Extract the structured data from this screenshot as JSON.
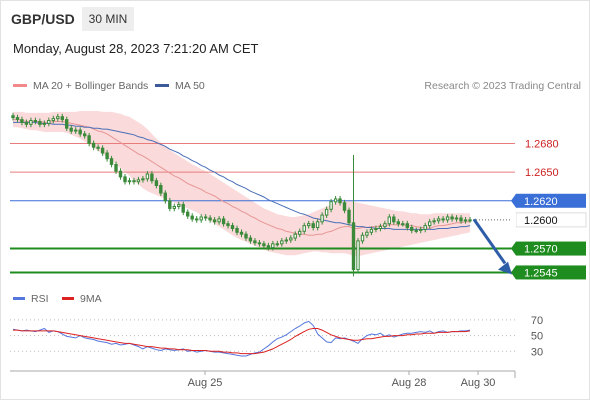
{
  "header": {
    "pair": "GBP/USD",
    "timeframe": "30 MIN",
    "datetime": "Monday, August 28, 2023 7:21:20 AM CET"
  },
  "legend": {
    "ma20_bb": "MA 20 + Bollinger Bands",
    "ma50": "MA 50",
    "copyright": "Research © 2023 Trading Central"
  },
  "rsi_legend": {
    "rsi": "RSI",
    "ma9": "9MA"
  },
  "colors": {
    "candle": "#3b8a3b",
    "bollinger_fill": "#fadada",
    "ma20": "#e89696",
    "ma50": "#4a6fb8",
    "resistance": "#e87c7c",
    "pivot": "#3a6fd8",
    "support": "#1e8c1e",
    "last_price": "#222222",
    "arrow": "#2e5da8",
    "rsi": "#5577dd",
    "rsi_ma9": "#dd2222"
  },
  "chart_data": [
    {
      "type": "candlestick",
      "title": "GBP/USD 30 MIN",
      "ylim": [
        1.2535,
        1.2715
      ],
      "x_ticks": [
        "Aug 25",
        "Aug 28",
        "Aug 30"
      ],
      "levels": [
        {
          "label": "1.2680",
          "value": 1.268,
          "kind": "resistance"
        },
        {
          "label": "1.2650",
          "value": 1.265,
          "kind": "resistance"
        },
        {
          "label": "1.2620",
          "value": 1.262,
          "kind": "pivot"
        },
        {
          "label": "1.2600",
          "value": 1.26,
          "kind": "last"
        },
        {
          "label": "1.2570",
          "value": 1.257,
          "kind": "support"
        },
        {
          "label": "1.2545",
          "value": 1.2545,
          "kind": "support"
        }
      ],
      "close": [
        1.2707,
        1.2705,
        1.2702,
        1.27,
        1.2704,
        1.2703,
        1.27,
        1.2701,
        1.2704,
        1.2706,
        1.2708,
        1.2705,
        1.2696,
        1.2693,
        1.2694,
        1.269,
        1.2688,
        1.268,
        1.2676,
        1.2675,
        1.267,
        1.2664,
        1.2658,
        1.2651,
        1.2645,
        1.264,
        1.2641,
        1.264,
        1.2642,
        1.2643,
        1.2648,
        1.2641,
        1.2636,
        1.2628,
        1.262,
        1.2612,
        1.2614,
        1.2616,
        1.2608,
        1.2604,
        1.2601,
        1.26,
        1.2603,
        1.2602,
        1.26,
        1.2598,
        1.2601,
        1.2596,
        1.2594,
        1.2591,
        1.2587,
        1.2585,
        1.2581,
        1.2578,
        1.2576,
        1.2575,
        1.2573,
        1.2571,
        1.2575,
        1.2575,
        1.2578,
        1.2579,
        1.2581,
        1.2585,
        1.2588,
        1.2594,
        1.2596,
        1.2592,
        1.2598,
        1.2605,
        1.2611,
        1.2619,
        1.2622,
        1.2618,
        1.261,
        1.2597,
        1.2548,
        1.2578,
        1.2584,
        1.2587,
        1.259,
        1.2591,
        1.2593,
        1.2596,
        1.2603,
        1.2598,
        1.2596,
        1.2596,
        1.2592,
        1.2589,
        1.2589,
        1.259,
        1.2594,
        1.2598,
        1.2599,
        1.2601,
        1.26,
        1.2603,
        1.2601,
        1.2602,
        1.2599,
        1.26,
        1.26
      ],
      "ma20": [
        1.2705,
        1.2705,
        1.2704,
        1.2703,
        1.2703,
        1.2703,
        1.2703,
        1.2702,
        1.2702,
        1.2703,
        1.2703,
        1.2703,
        1.2702,
        1.2701,
        1.27,
        1.2699,
        1.2698,
        1.2697,
        1.2695,
        1.2693,
        1.2692,
        1.269,
        1.2687,
        1.2684,
        1.2681,
        1.2678,
        1.2675,
        1.2672,
        1.2669,
        1.2667,
        1.2664,
        1.2661,
        1.2658,
        1.2655,
        1.2652,
        1.2649,
        1.2646,
        1.2644,
        1.2641,
        1.2638,
        1.2636,
        1.2634,
        1.2632,
        1.2629,
        1.2627,
        1.2625,
        1.2622,
        1.2619,
        1.2617,
        1.2614,
        1.2612,
        1.2609,
        1.2607,
        1.2604,
        1.2602,
        1.2599,
        1.2597,
        1.2595,
        1.2593,
        1.2591,
        1.259,
        1.2588,
        1.2587,
        1.2586,
        1.2585,
        1.2585,
        1.2584,
        1.2584,
        1.2585,
        1.2585,
        1.2587,
        1.2588,
        1.259,
        1.2592,
        1.2593,
        1.2593,
        1.2591,
        1.2591,
        1.2592,
        1.2592,
        1.2593,
        1.2593,
        1.2594,
        1.2594,
        1.2595,
        1.2595,
        1.2595,
        1.2595,
        1.2594,
        1.2594,
        1.2593,
        1.2592,
        1.2592,
        1.2591,
        1.2593,
        1.2594,
        1.2594,
        1.2595,
        1.2596,
        1.2597,
        1.2597,
        1.2598,
        1.2598
      ],
      "ma50": [
        1.2702,
        1.2702,
        1.2702,
        1.2702,
        1.2702,
        1.2702,
        1.2701,
        1.2701,
        1.2701,
        1.27,
        1.27,
        1.27,
        1.2699,
        1.2699,
        1.2698,
        1.2698,
        1.2697,
        1.2697,
        1.2696,
        1.2696,
        1.2695,
        1.2695,
        1.2694,
        1.2693,
        1.2692,
        1.2691,
        1.269,
        1.2689,
        1.2687,
        1.2686,
        1.2684,
        1.2683,
        1.2681,
        1.2679,
        1.2677,
        1.2674,
        1.2672,
        1.267,
        1.2667,
        1.2665,
        1.2662,
        1.266,
        1.2657,
        1.2655,
        1.2652,
        1.265,
        1.2647,
        1.2645,
        1.2642,
        1.264,
        1.2637,
        1.2635,
        1.2633,
        1.263,
        1.2628,
        1.2626,
        1.2624,
        1.2621,
        1.2619,
        1.2617,
        1.2615,
        1.2613,
        1.2611,
        1.2609,
        1.2607,
        1.2606,
        1.2604,
        1.2602,
        1.2601,
        1.26,
        1.2599,
        1.2598,
        1.2597,
        1.2597,
        1.2596,
        1.2595,
        1.2594,
        1.2593,
        1.2593,
        1.2592,
        1.2592,
        1.2591,
        1.2591,
        1.2591,
        1.2591,
        1.259,
        1.259,
        1.259,
        1.259,
        1.259,
        1.259,
        1.259,
        1.259,
        1.259,
        1.259,
        1.2591,
        1.2591,
        1.2591,
        1.2592,
        1.2592,
        1.2593,
        1.2593,
        1.2594
      ],
      "bb_upper": [
        1.2713,
        1.2713,
        1.2713,
        1.2712,
        1.2712,
        1.2712,
        1.2712,
        1.2712,
        1.2712,
        1.2713,
        1.2713,
        1.2713,
        1.2713,
        1.2713,
        1.2713,
        1.2714,
        1.2714,
        1.2714,
        1.2714,
        1.2714,
        1.2713,
        1.2713,
        1.2713,
        1.2712,
        1.2711,
        1.2709,
        1.2708,
        1.2705,
        1.2702,
        1.2699,
        1.2695,
        1.269,
        1.2685,
        1.2681,
        1.2677,
        1.2673,
        1.267,
        1.2667,
        1.2664,
        1.2661,
        1.2658,
        1.2656,
        1.2653,
        1.2651,
        1.2648,
        1.2645,
        1.2642,
        1.2639,
        1.2636,
        1.2633,
        1.263,
        1.2627,
        1.2624,
        1.2621,
        1.2618,
        1.2615,
        1.2612,
        1.261,
        1.2608,
        1.2606,
        1.2605,
        1.2604,
        1.2603,
        1.2603,
        1.2604,
        1.2605,
        1.2606,
        1.2608,
        1.261,
        1.2612,
        1.2614,
        1.2616,
        1.2618,
        1.2619,
        1.262,
        1.262,
        1.2619,
        1.2618,
        1.2617,
        1.2616,
        1.2615,
        1.2614,
        1.2613,
        1.2612,
        1.2611,
        1.261,
        1.2609,
        1.2609,
        1.2608,
        1.2607,
        1.2607,
        1.2606,
        1.2606,
        1.2606,
        1.2607,
        1.2607,
        1.2607,
        1.2607,
        1.2607,
        1.2607,
        1.2607,
        1.2607,
        1.2607
      ],
      "bb_lower": [
        1.2697,
        1.2697,
        1.2696,
        1.2695,
        1.2694,
        1.2694,
        1.2693,
        1.2692,
        1.2692,
        1.2692,
        1.2692,
        1.2692,
        1.2691,
        1.2689,
        1.2687,
        1.2685,
        1.2682,
        1.2679,
        1.2676,
        1.2672,
        1.2669,
        1.2666,
        1.2662,
        1.2658,
        1.2654,
        1.265,
        1.2646,
        1.2641,
        1.2637,
        1.2633,
        1.263,
        1.2628,
        1.2626,
        1.2624,
        1.2622,
        1.262,
        1.2618,
        1.2616,
        1.2614,
        1.2612,
        1.261,
        1.2608,
        1.2605,
        1.2602,
        1.2599,
        1.2596,
        1.2593,
        1.259,
        1.2587,
        1.2584,
        1.2581,
        1.2579,
        1.2577,
        1.2575,
        1.2573,
        1.2571,
        1.2569,
        1.2567,
        1.2566,
        1.2565,
        1.2564,
        1.2563,
        1.2563,
        1.2563,
        1.2564,
        1.2565,
        1.2566,
        1.2567,
        1.2567,
        1.2566,
        1.2566,
        1.2565,
        1.2565,
        1.2565,
        1.2565,
        1.2564,
        1.2562,
        1.2562,
        1.2563,
        1.2564,
        1.2565,
        1.2566,
        1.2567,
        1.2568,
        1.2569,
        1.257,
        1.2571,
        1.2572,
        1.2573,
        1.2574,
        1.2575,
        1.2576,
        1.2577,
        1.2578,
        1.2579,
        1.258,
        1.2581,
        1.2582,
        1.2583,
        1.2584,
        1.2585,
        1.2586,
        1.2587
      ]
    },
    {
      "type": "line",
      "title": "RSI",
      "y_ticks": [
        "70",
        "50",
        "30"
      ],
      "ylim": [
        10,
        80
      ],
      "series": [
        {
          "name": "RSI",
          "values": [
            58,
            57,
            56,
            57,
            56,
            55,
            57,
            59,
            54,
            56,
            55,
            52,
            49,
            48,
            47,
            50,
            47,
            46,
            45,
            43,
            42,
            41,
            39,
            40,
            38,
            39,
            40,
            38,
            36,
            33,
            36,
            34,
            32,
            31,
            33,
            32,
            31,
            32,
            33,
            30,
            31,
            29,
            30,
            31,
            30,
            29,
            29,
            28,
            27,
            26,
            25,
            24,
            24,
            26,
            28,
            29,
            33,
            37,
            42,
            46,
            48,
            51,
            55,
            59,
            62,
            66,
            68,
            63,
            52,
            47,
            42,
            41,
            47,
            46,
            47,
            45,
            43,
            40,
            46,
            50,
            52,
            51,
            53,
            49,
            51,
            48,
            50,
            52,
            53,
            53,
            54,
            55,
            54,
            56,
            53,
            55,
            56,
            54,
            55,
            55,
            56,
            56,
            57
          ]
        },
        {
          "name": "9MA",
          "values": [
            57,
            57,
            56,
            56,
            56,
            56,
            56,
            56,
            56,
            56,
            55,
            54,
            53,
            52,
            51,
            50,
            49,
            48,
            47,
            46,
            45,
            44,
            43,
            42,
            41,
            40,
            40,
            39,
            38,
            37,
            36,
            36,
            35,
            34,
            34,
            33,
            33,
            32,
            32,
            32,
            31,
            31,
            31,
            31,
            30,
            30,
            30,
            29,
            29,
            28,
            28,
            27,
            27,
            27,
            27,
            28,
            29,
            31,
            33,
            36,
            39,
            42,
            45,
            49,
            52,
            55,
            58,
            59,
            59,
            57,
            54,
            51,
            49,
            47,
            46,
            45,
            44,
            44,
            45,
            46,
            46,
            47,
            48,
            49,
            49,
            50,
            50,
            50,
            51,
            51,
            52,
            52,
            53,
            53,
            53,
            54,
            54,
            54,
            55,
            55,
            55,
            55,
            56
          ]
        }
      ]
    }
  ]
}
